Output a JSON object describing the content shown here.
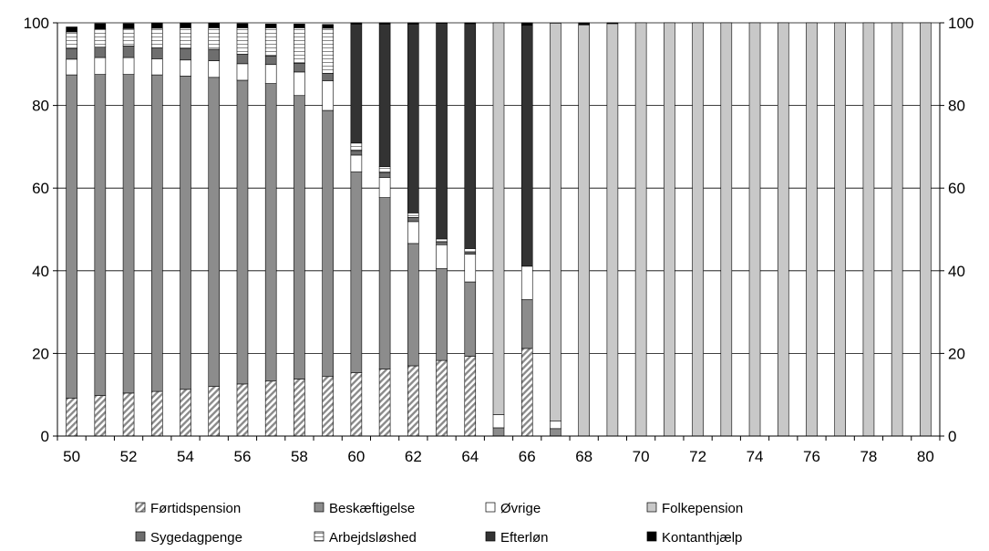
{
  "chart_data": {
    "type": "bar",
    "stacked": true,
    "title": "",
    "xlabel": "",
    "ylabel": "",
    "ylim": [
      0,
      100
    ],
    "yticks": [
      0,
      20,
      40,
      60,
      80,
      100
    ],
    "secondary_yticks": [
      0,
      20,
      40,
      60,
      80,
      100
    ],
    "x": [
      50,
      51,
      52,
      53,
      54,
      55,
      56,
      57,
      58,
      59,
      60,
      61,
      62,
      63,
      64,
      65,
      66,
      67,
      68,
      69,
      70,
      71,
      72,
      73,
      74,
      75,
      76,
      77,
      78,
      79,
      80
    ],
    "xtick_labels": [
      "50",
      "52",
      "54",
      "56",
      "58",
      "60",
      "62",
      "64",
      "66",
      "68",
      "70",
      "72",
      "74",
      "76",
      "78",
      "80"
    ],
    "legend_position": "bottom",
    "series": [
      {
        "name": "Førtidspension",
        "fill": "hatch-diag",
        "color": "#9a9a9a",
        "values": [
          9.2,
          9.8,
          10.4,
          10.8,
          11.3,
          12.0,
          12.6,
          13.3,
          13.8,
          14.4,
          15.3,
          16.2,
          17.0,
          18.3,
          19.3,
          0,
          21.2,
          0,
          0,
          0,
          0,
          0,
          0,
          0,
          0,
          0,
          0,
          0,
          0,
          0,
          0
        ]
      },
      {
        "name": "Beskæftigelse",
        "fill": "solid",
        "color": "#8c8c8c",
        "values": [
          78.2,
          77.7,
          77.1,
          76.6,
          75.8,
          74.8,
          73.5,
          72.0,
          68.6,
          64.4,
          48.6,
          41.5,
          29.6,
          22.2,
          18.0,
          2.0,
          11.8,
          1.8,
          0,
          0,
          0,
          0,
          0,
          0,
          0,
          0,
          0,
          0,
          0,
          0,
          0
        ]
      },
      {
        "name": "Øvrige",
        "fill": "solid",
        "color": "#ffffff",
        "values": [
          3.8,
          4.1,
          4.1,
          3.9,
          3.9,
          4.0,
          4.0,
          4.6,
          5.7,
          7.2,
          4.1,
          4.9,
          5.3,
          5.8,
          6.7,
          3.2,
          8.1,
          1.8,
          0,
          0,
          0,
          0,
          0,
          0,
          0,
          0,
          0,
          0,
          0,
          0,
          0
        ]
      },
      {
        "name": "Sygedagpenge",
        "fill": "solid",
        "color": "#6e6e6e",
        "values": [
          2.6,
          2.5,
          2.8,
          2.6,
          2.8,
          2.8,
          2.3,
          2.1,
          2.1,
          1.8,
          1.1,
          1.2,
          1.0,
          0.6,
          0.6,
          0,
          0,
          0,
          0,
          0,
          0,
          0,
          0,
          0,
          0,
          0,
          0,
          0,
          0,
          0,
          0
        ]
      },
      {
        "name": "Arbejdsløshed",
        "fill": "hatch-horizontal",
        "color": "#ffffff",
        "values": [
          4.0,
          4.4,
          4.2,
          4.8,
          5.0,
          5.2,
          6.4,
          6.8,
          8.6,
          10.9,
          1.8,
          1.4,
          1.1,
          0.8,
          0.8,
          0,
          0,
          0,
          0,
          0,
          0,
          0,
          0,
          0,
          0,
          0,
          0,
          0,
          0,
          0,
          0
        ]
      },
      {
        "name": "Efterløn",
        "fill": "solid",
        "color": "#333333",
        "values": [
          0,
          0,
          0,
          0,
          0,
          0,
          0,
          0,
          0,
          0,
          28.8,
          34.5,
          45.7,
          52.2,
          54.4,
          0,
          58.3,
          0,
          0,
          0,
          0,
          0,
          0,
          0,
          0,
          0,
          0,
          0,
          0,
          0,
          0
        ]
      },
      {
        "name": "Folkepension",
        "fill": "solid",
        "color": "#c8c8c8",
        "values": [
          0,
          0,
          0,
          0,
          0,
          0,
          0,
          0,
          0,
          0,
          0,
          0,
          0,
          0,
          0,
          94.8,
          0,
          96.3,
          99.5,
          99.8,
          100,
          100,
          100,
          100,
          100,
          100,
          100,
          100,
          100,
          100,
          100
        ]
      },
      {
        "name": "Kontanthjælp",
        "fill": "solid",
        "color": "#000000",
        "values": [
          1.2,
          1.3,
          1.2,
          1.2,
          1.1,
          1.1,
          1.0,
          0.9,
          0.9,
          0.9,
          0.3,
          0.3,
          0.3,
          0.1,
          0.2,
          0,
          0.6,
          0,
          0.5,
          0.2,
          0,
          0,
          0,
          0,
          0,
          0,
          0,
          0,
          0,
          0,
          0
        ]
      }
    ],
    "legend_order": [
      "Førtidspension",
      "Beskæftigelse",
      "Øvrige",
      "Folkepension",
      "Sygedagpenge",
      "Arbejdsløshed",
      "Efterløn",
      "Kontanthjælp"
    ]
  }
}
